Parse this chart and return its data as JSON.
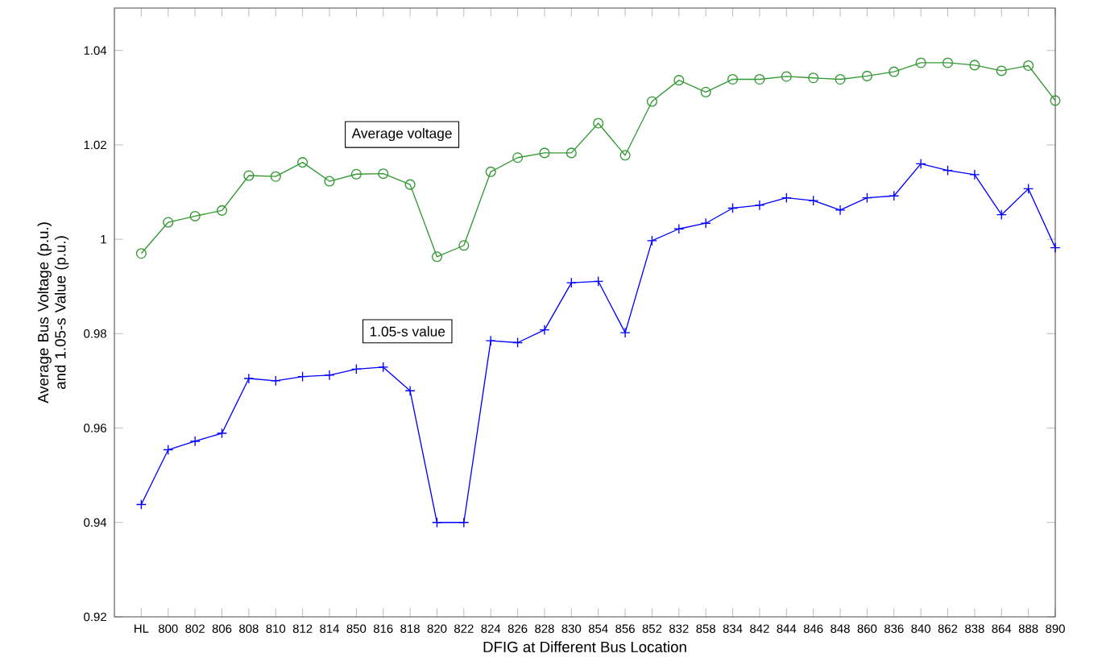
{
  "chart_data": {
    "type": "line",
    "xlabel": "DFIG at Different Bus Location",
    "ylabel": "Average Bus Voltage (p.u.) and 1.05-s Value (p.u.)",
    "categories": [
      "HL",
      "800",
      "802",
      "806",
      "808",
      "810",
      "812",
      "814",
      "850",
      "816",
      "818",
      "820",
      "822",
      "824",
      "826",
      "828",
      "830",
      "854",
      "856",
      "852",
      "832",
      "858",
      "834",
      "842",
      "844",
      "846",
      "848",
      "860",
      "836",
      "840",
      "862",
      "838",
      "864",
      "888",
      "890"
    ],
    "series": [
      {
        "name": "Average voltage",
        "color": "#339933",
        "marker": "circle",
        "values": [
          0.997,
          1.0036,
          1.0049,
          1.0061,
          1.0135,
          1.0133,
          1.0163,
          1.0123,
          1.0138,
          1.0139,
          1.0116,
          0.9963,
          0.9987,
          1.0143,
          1.0173,
          1.0183,
          1.0183,
          1.0246,
          1.0178,
          1.0292,
          1.0337,
          1.0312,
          1.0339,
          1.0339,
          1.0345,
          1.0342,
          1.0339,
          1.0346,
          1.0355,
          1.0374,
          1.0374,
          1.0369,
          1.0357,
          1.0368,
          1.0294
        ]
      },
      {
        "name": "1.05-s value",
        "color": "#0000ff",
        "marker": "cross",
        "values": [
          0.9438,
          0.9554,
          0.9572,
          0.9589,
          0.9705,
          0.97,
          0.9709,
          0.9712,
          0.9725,
          0.9729,
          0.9679,
          0.94,
          0.94,
          0.9785,
          0.9781,
          0.9808,
          0.9908,
          0.9911,
          0.9802,
          0.9997,
          1.0022,
          1.0034,
          1.0066,
          1.0072,
          1.0088,
          1.0082,
          1.0062,
          1.0088,
          1.0092,
          1.016,
          1.0146,
          1.0137,
          1.0052,
          1.0107,
          0.9982
        ]
      }
    ],
    "ylim": [
      0.92,
      1.049
    ],
    "yticks": [
      0.92,
      0.94,
      0.96,
      0.98,
      1,
      1.02,
      1.04
    ],
    "grid": false,
    "legend": false,
    "line_style": "solid"
  }
}
